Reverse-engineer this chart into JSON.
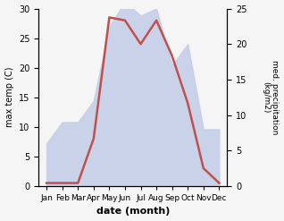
{
  "months": [
    "Jan",
    "Feb",
    "Mar",
    "Apr",
    "May",
    "Jun",
    "Jul",
    "Aug",
    "Sep",
    "Oct",
    "Nov",
    "Dec"
  ],
  "temperature": [
    0.5,
    0.5,
    0.5,
    8.0,
    28.5,
    28.0,
    24.0,
    28.0,
    22.0,
    14.0,
    3.0,
    0.5
  ],
  "precipitation": [
    6.0,
    9.0,
    9.0,
    12.0,
    22.5,
    26.0,
    24.0,
    25.0,
    17.0,
    20.0,
    8.0,
    8.0
  ],
  "temp_color": "#c0504d",
  "precip_fill_color": "#c5cfe8",
  "temp_ylim": [
    0,
    30
  ],
  "precip_ylim": [
    0,
    25
  ],
  "temp_yticks": [
    0,
    5,
    10,
    15,
    20,
    25,
    30
  ],
  "precip_yticks": [
    0,
    5,
    10,
    15,
    20,
    25
  ],
  "xlabel": "date (month)",
  "ylabel_left": "max temp (C)",
  "ylabel_right": "med. precipitation\n(kg/m2)",
  "bg_color": "#f5f5f5"
}
